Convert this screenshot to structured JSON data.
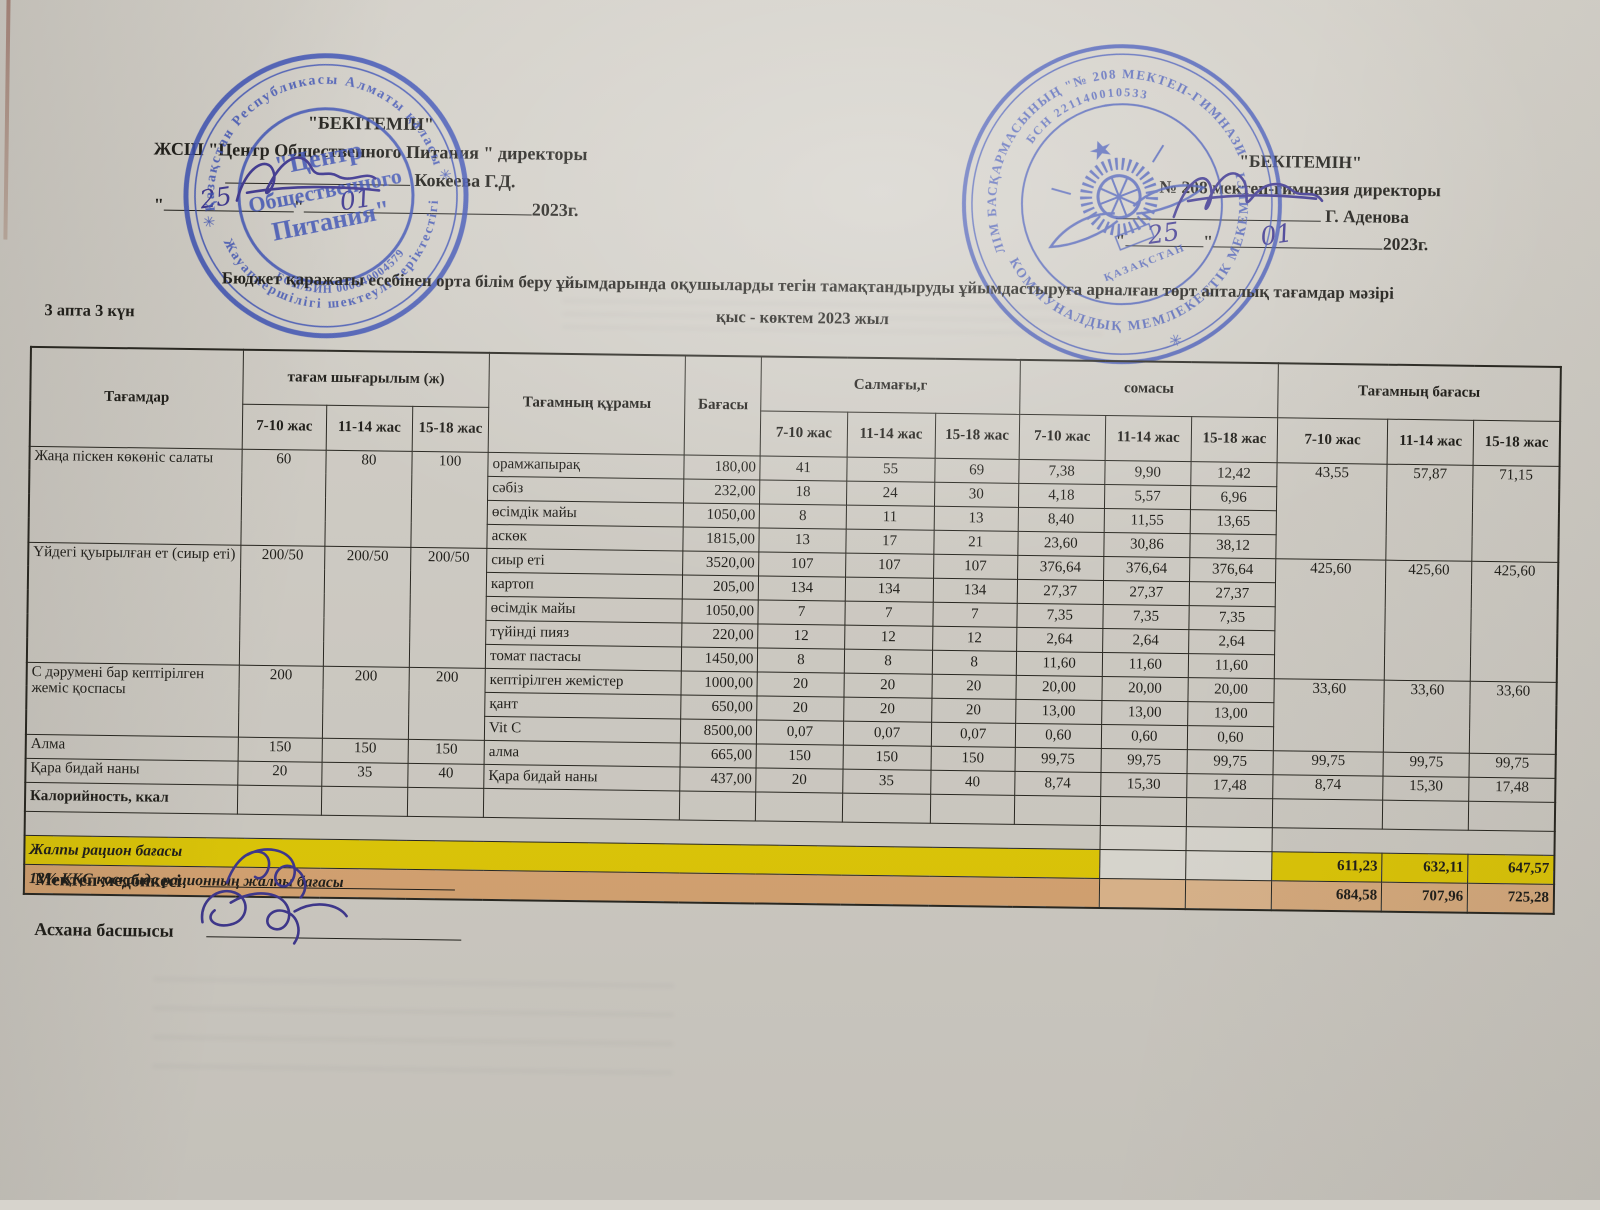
{
  "page": {
    "title": "Бюджет қаражаты есебінен орта білім беру ұйымдарында оқушыларды тегін тамақтандыруды ұйымдастыруға арналған төрт апталық тағамдар мәзірі",
    "season": "қыс - көктем 2023 жыл",
    "week_label": "3 апта  3 күн"
  },
  "approvals": {
    "left": {
      "approve": "\"БЕКІТЕМІН\"",
      "org": "ЖСШ \"Центр Общественного Питания \" директоры",
      "name": "Кокеева Г.Д.",
      "day": "25",
      "month": "01",
      "year": "2023г.",
      "quote": "\""
    },
    "right": {
      "approve": "\"БЕКІТЕМІН\"",
      "org": "№ 208 мектеп-гимназия директоры",
      "name": "Г. Аденова",
      "day": "25",
      "month": "01",
      "year": "2023г.",
      "quote": "\""
    }
  },
  "stamps": {
    "left": {
      "ring_top": "Қазақстан Республикасы Алматы қаласы",
      "ring_bottom": "Жауапкершілігі шектеулі серіктестігі",
      "center1": "\"Центр",
      "center2": "Общественного",
      "center3": "Питания\"",
      "bsn": "БСН/БИН 000640004579"
    },
    "right": {
      "ring_top": "БІЛІМ БАСҚАРМАСЫНЫҢ \"№ 208 МЕКТЕП-ГИМНАЗИЯ\"",
      "ring_bottom": "КОММУНАЛДЫҚ МЕМЛЕКЕТТІК МЕКЕМЕСІ",
      "bsn": "БСН 221140010533",
      "country": "ҚАЗАҚСТАН"
    }
  },
  "table": {
    "headers": {
      "dishes": "Тағамдар",
      "output": "тағам шығарылым  (ж)",
      "composition": "Тағамның құрамы",
      "price": "Бағасы",
      "weight": "Салмағы,г",
      "sum": "сомасы",
      "dish_price": "Тағамның бағасы",
      "ages": [
        "7-10 жас",
        "11-14 жас",
        "15-18 жас"
      ]
    },
    "groups": [
      {
        "dish": "Жаңа піскен көкөніс салаты",
        "portions": [
          "60",
          "80",
          "100"
        ],
        "dish_prices": [
          "43,55",
          "57,87",
          "71,15"
        ],
        "rows": [
          {
            "ingredient": "орамжапырақ",
            "price": "180,00",
            "weights": [
              "41",
              "55",
              "69"
            ],
            "sums": [
              "7,38",
              "9,90",
              "12,42"
            ]
          },
          {
            "ingredient": "сәбіз",
            "price": "232,00",
            "weights": [
              "18",
              "24",
              "30"
            ],
            "sums": [
              "4,18",
              "5,57",
              "6,96"
            ]
          },
          {
            "ingredient": "өсімдік майы",
            "price": "1050,00",
            "weights": [
              "8",
              "11",
              "13"
            ],
            "sums": [
              "8,40",
              "11,55",
              "13,65"
            ]
          },
          {
            "ingredient": "аскөк",
            "price": "1815,00",
            "weights": [
              "13",
              "17",
              "21"
            ],
            "sums": [
              "23,60",
              "30,86",
              "38,12"
            ]
          }
        ]
      },
      {
        "dish": "Үйдегі қуырылған ет (сиыр еті)",
        "portions": [
          "200/50",
          "200/50",
          "200/50"
        ],
        "dish_prices": [
          "425,60",
          "425,60",
          "425,60"
        ],
        "rows": [
          {
            "ingredient": "сиыр еті",
            "price": "3520,00",
            "weights": [
              "107",
              "107",
              "107"
            ],
            "sums": [
              "376,64",
              "376,64",
              "376,64"
            ]
          },
          {
            "ingredient": "картоп",
            "price": "205,00",
            "weights": [
              "134",
              "134",
              "134"
            ],
            "sums": [
              "27,37",
              "27,37",
              "27,37"
            ]
          },
          {
            "ingredient": "өсімдік майы",
            "price": "1050,00",
            "weights": [
              "7",
              "7",
              "7"
            ],
            "sums": [
              "7,35",
              "7,35",
              "7,35"
            ]
          },
          {
            "ingredient": "түйінді пияз",
            "price": "220,00",
            "weights": [
              "12",
              "12",
              "12"
            ],
            "sums": [
              "2,64",
              "2,64",
              "2,64"
            ]
          },
          {
            "ingredient": "томат пастасы",
            "price": "1450,00",
            "weights": [
              "8",
              "8",
              "8"
            ],
            "sums": [
              "11,60",
              "11,60",
              "11,60"
            ]
          }
        ]
      },
      {
        "dish": "С дәрумені бар кептірілген жеміс қоспасы",
        "portions": [
          "200",
          "200",
          "200"
        ],
        "dish_prices": [
          "33,60",
          "33,60",
          "33,60"
        ],
        "rows": [
          {
            "ingredient": "кептірілген жемістер",
            "price": "1000,00",
            "weights": [
              "20",
              "20",
              "20"
            ],
            "sums": [
              "20,00",
              "20,00",
              "20,00"
            ]
          },
          {
            "ingredient": "қант",
            "price": "650,00",
            "weights": [
              "20",
              "20",
              "20"
            ],
            "sums": [
              "13,00",
              "13,00",
              "13,00"
            ]
          },
          {
            "ingredient": "Vit C",
            "price": "8500,00",
            "weights": [
              "0,07",
              "0,07",
              "0,07"
            ],
            "sums": [
              "0,60",
              "0,60",
              "0,60"
            ]
          }
        ]
      },
      {
        "dish": "Алма",
        "portions": [
          "150",
          "150",
          "150"
        ],
        "dish_prices": [
          "99,75",
          "99,75",
          "99,75"
        ],
        "rows": [
          {
            "ingredient": "алма",
            "price": "665,00",
            "weights": [
              "150",
              "150",
              "150"
            ],
            "sums": [
              "99,75",
              "99,75",
              "99,75"
            ]
          }
        ]
      },
      {
        "dish": "Қара бидай наны",
        "portions": [
          "20",
          "35",
          "40"
        ],
        "dish_prices": [
          "8,74",
          "15,30",
          "17,48"
        ],
        "rows": [
          {
            "ingredient": "Қара бидай наны",
            "price": "437,00",
            "weights": [
              "20",
              "35",
              "40"
            ],
            "sums": [
              "8,74",
              "15,30",
              "17,48"
            ]
          }
        ]
      }
    ],
    "calories_label": "Калорийность, ккал",
    "totals": [
      {
        "label": "Жалпы рацион бағасы",
        "values": [
          "611,23",
          "632,11",
          "647,57"
        ]
      },
      {
        "label": "12% ҚҚС қосқанда рационның жалпы бағасы",
        "values": [
          "684,58",
          "707,96",
          "725,28"
        ]
      }
    ]
  },
  "footer": {
    "nurse_label": "Мектеп медбикесі",
    "canteen_label": "Асхана басшысы"
  },
  "colors": {
    "stamp_blue": "#3c52bb",
    "ink": "#3d3694",
    "total_yellow": "#e9d104",
    "total_orange": "#e0ae7e"
  }
}
